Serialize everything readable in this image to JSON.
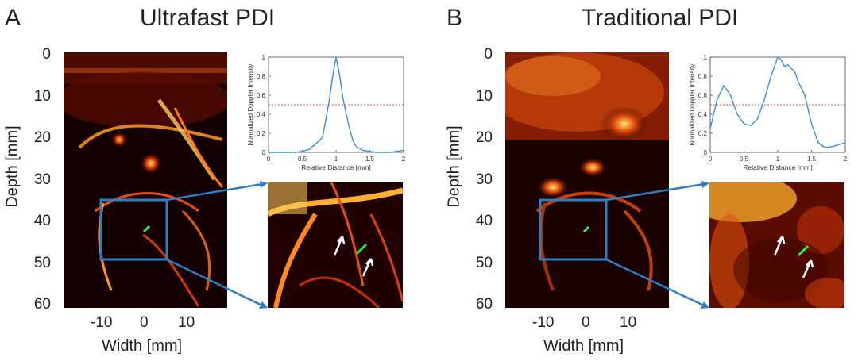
{
  "panels": [
    {
      "letter": "A",
      "title": "Ultrafast PDI",
      "y_ticks": [
        "0",
        "10",
        "20",
        "30",
        "40",
        "50",
        "60"
      ],
      "x_ticks": [
        "-10",
        "0",
        "10"
      ],
      "ylabel": "Depth [mm]",
      "xlabel": "Width [mm]"
    },
    {
      "letter": "B",
      "title": "Traditional PDI",
      "y_ticks": [
        "0",
        "10",
        "20",
        "30",
        "40",
        "50",
        "60"
      ],
      "x_ticks": [
        "-10",
        "0",
        "10"
      ],
      "ylabel": "Depth [mm]",
      "xlabel": "Width [mm]"
    }
  ],
  "chart_data": [
    {
      "type": "line",
      "xlabel": "Relative Distance [mm]",
      "ylabel": "Normalized Doppler Intensity",
      "xlim": [
        0,
        2
      ],
      "ylim": [
        0,
        1
      ],
      "x_ticks": [
        "0",
        "0.5",
        "1",
        "1.5",
        "2"
      ],
      "y_ticks": [
        "0",
        "0.2",
        "0.4",
        "0.6",
        "0.8",
        "1"
      ],
      "reference_y": 0.5,
      "series": [
        {
          "color": "#3a8fd0",
          "x": [
            0,
            0.2,
            0.4,
            0.5,
            0.6,
            0.7,
            0.75,
            0.8,
            0.85,
            0.9,
            0.95,
            1.0,
            1.05,
            1.1,
            1.15,
            1.2,
            1.25,
            1.3,
            1.4,
            1.5,
            1.6,
            1.8,
            2.0
          ],
          "y": [
            0.0,
            0.0,
            0.0,
            0.01,
            0.03,
            0.09,
            0.12,
            0.16,
            0.35,
            0.55,
            0.8,
            1.0,
            0.82,
            0.58,
            0.4,
            0.25,
            0.12,
            0.06,
            0.02,
            0.01,
            0.0,
            0.0,
            0.02
          ]
        }
      ]
    },
    {
      "type": "line",
      "xlabel": "Relative Distance [mm]",
      "ylabel": "Normalized Doppler Intensity",
      "xlim": [
        0,
        2
      ],
      "ylim": [
        0,
        1
      ],
      "x_ticks": [
        "0",
        "0.5",
        "1",
        "1.5",
        "2"
      ],
      "y_ticks": [
        "0",
        "0.2",
        "0.4",
        "0.6",
        "0.8",
        "1"
      ],
      "reference_y": 0.5,
      "series": [
        {
          "color": "#3a8fd0",
          "x": [
            0,
            0.1,
            0.2,
            0.3,
            0.4,
            0.5,
            0.6,
            0.7,
            0.8,
            0.9,
            1.0,
            1.05,
            1.1,
            1.15,
            1.2,
            1.25,
            1.3,
            1.4,
            1.5,
            1.6,
            1.7,
            1.8,
            1.9,
            2.0
          ],
          "y": [
            0.25,
            0.55,
            0.7,
            0.6,
            0.4,
            0.3,
            0.28,
            0.35,
            0.55,
            0.8,
            1.0,
            0.97,
            0.9,
            0.92,
            0.88,
            0.85,
            0.75,
            0.6,
            0.3,
            0.1,
            0.05,
            0.06,
            0.08,
            0.1
          ]
        }
      ]
    }
  ],
  "colors": {
    "zoom_box": "#2f7ec4",
    "vessel_marker": "#33ee33",
    "reference_line": "#e05050",
    "arrow": "#ffffff"
  }
}
